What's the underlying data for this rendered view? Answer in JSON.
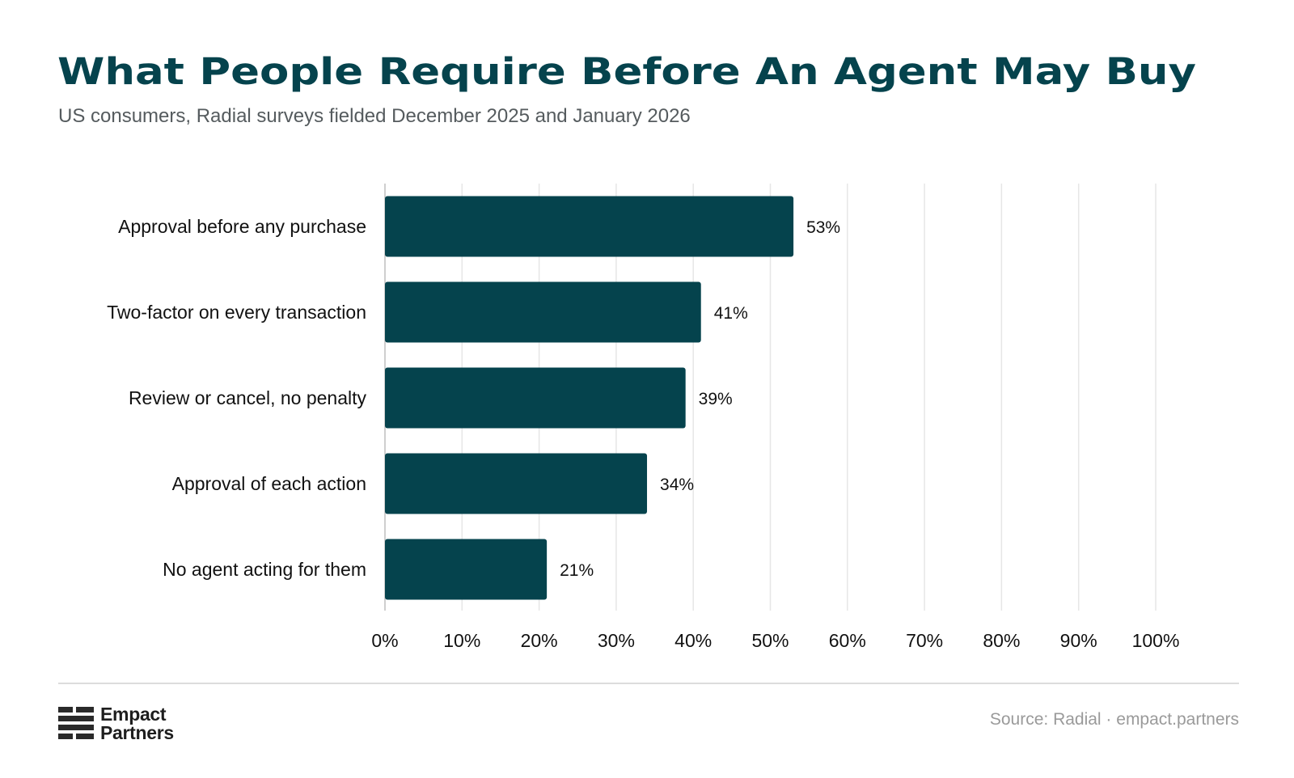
{
  "header": {
    "title": "What People Require Before An Agent May Buy",
    "subtitle": "US consumers, Radial surveys fielded December 2025 and January 2026"
  },
  "chart_data": {
    "type": "bar",
    "orientation": "horizontal",
    "categories": [
      "Approval before any purchase",
      "Two-factor on every transaction",
      "Review or cancel, no penalty",
      "Approval of each action",
      "No agent acting for them"
    ],
    "values": [
      53,
      41,
      39,
      34,
      21
    ],
    "value_labels": [
      "53%",
      "41%",
      "39%",
      "34%",
      "21%"
    ],
    "xlim": [
      0,
      100
    ],
    "x_ticks": [
      0,
      10,
      20,
      30,
      40,
      50,
      60,
      70,
      80,
      90,
      100
    ],
    "x_tick_labels": [
      "0%",
      "10%",
      "20%",
      "30%",
      "40%",
      "50%",
      "60%",
      "70%",
      "80%",
      "90%",
      "100%"
    ],
    "grid": true,
    "bar_color": "#05434d",
    "grid_color": "#e6e6e6",
    "xlabel": "",
    "ylabel": ""
  },
  "footer": {
    "logo_line1": "Empact",
    "logo_line2": "Partners",
    "source": "Source: Radial · empact.partners"
  },
  "colors": {
    "title": "#05434d",
    "subtitle": "#555b5e",
    "source": "#9a9a9a"
  }
}
